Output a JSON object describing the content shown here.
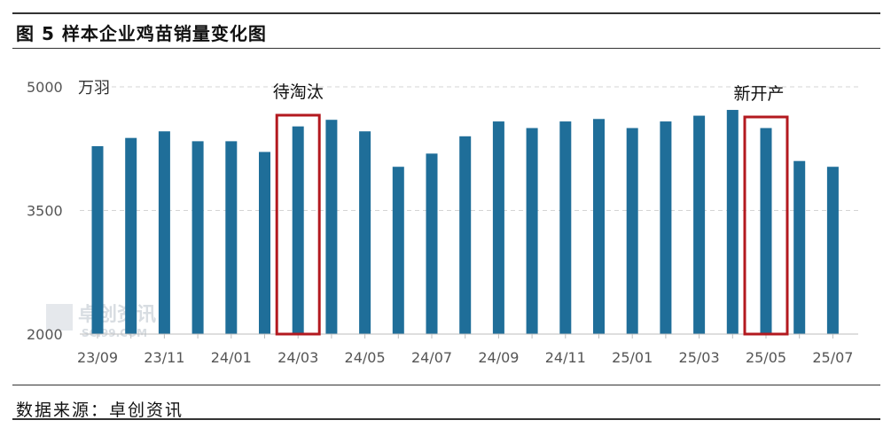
{
  "title": "图 5 样本企业鸡苗销量变化图",
  "source": "数据来源：卓创资讯",
  "watermark": {
    "name": "卓创资讯",
    "url": "SCI99.COM"
  },
  "colors": {
    "bar": "#1f6e99",
    "highlight": "#b3191f",
    "grid": "#d4d4d4",
    "axis": "#bdbdbd"
  },
  "chart_data": {
    "type": "bar",
    "unit_label": "万羽",
    "ylim": [
      2000,
      5000
    ],
    "yticks": [
      2000,
      3500,
      5000
    ],
    "grid": true,
    "categories": [
      "23/09",
      "23/10",
      "23/11",
      "23/12",
      "24/01",
      "24/02",
      "24/03",
      "24/04",
      "24/05",
      "24/06",
      "24/07",
      "24/08",
      "24/09",
      "24/10",
      "24/11",
      "24/12",
      "25/01",
      "25/02",
      "25/03",
      "25/04",
      "25/05",
      "25/06",
      "25/07"
    ],
    "xtick_labels": [
      "23/09",
      "23/11",
      "24/01",
      "24/03",
      "24/05",
      "24/07",
      "24/09",
      "24/11",
      "25/01",
      "25/03",
      "25/05",
      "25/07"
    ],
    "values": [
      4280,
      4380,
      4460,
      4340,
      4340,
      4210,
      4520,
      4600,
      4460,
      4030,
      4190,
      4400,
      4580,
      4500,
      4580,
      4610,
      4500,
      4580,
      4650,
      4720,
      4500,
      4100,
      4030
    ],
    "annotations": [
      {
        "label": "待淘汰",
        "category": "24/03"
      },
      {
        "label": "新开产",
        "category": "25/05"
      }
    ]
  }
}
